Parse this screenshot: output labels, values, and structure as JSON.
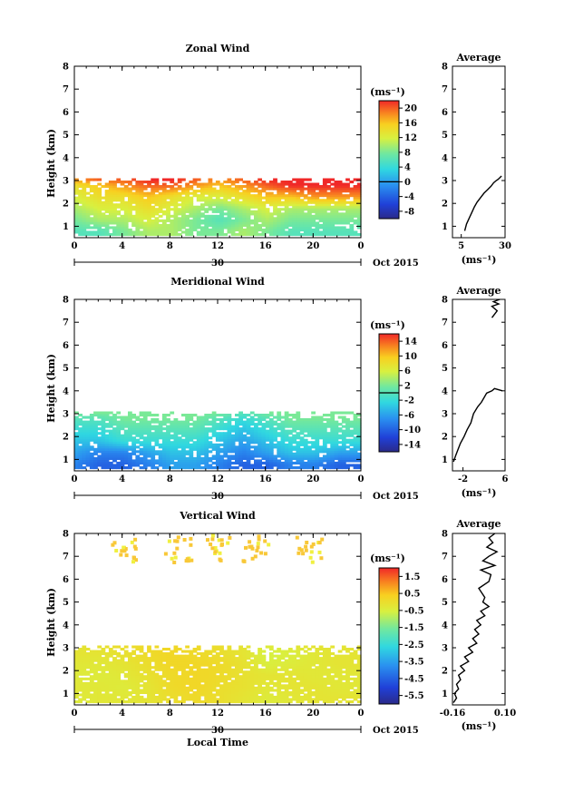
{
  "chart_data": [
    {
      "type": "heatmap",
      "title": "Zonal Wind",
      "xlabel": "",
      "ylabel": "Height (km)",
      "x_ticks": [
        "0",
        "4",
        "8",
        "12",
        "16",
        "20",
        "0"
      ],
      "y_ticks": [
        "1",
        "2",
        "3",
        "4",
        "5",
        "6",
        "7",
        "8"
      ],
      "xlim": [
        0,
        24
      ],
      "ylim": [
        0.5,
        8
      ],
      "date_day": "30",
      "date_suffix": "Oct 2015",
      "unit": "(ms⁻¹)",
      "colorbar_ticks": [
        "20",
        "16",
        "12",
        "8",
        "4",
        "0",
        "-4",
        "-8"
      ],
      "colorbar_values": [
        20,
        16,
        12,
        8,
        4,
        0,
        -4,
        -8
      ],
      "colorbar_range": [
        -10,
        22
      ],
      "colorbar_marker": 0,
      "field": {
        "t": [
          0,
          2,
          4,
          6,
          8,
          10,
          12,
          14,
          16,
          18,
          20,
          22,
          24
        ],
        "h": [
          0.75,
          1.25,
          1.75,
          2.25,
          2.75,
          3.0
        ],
        "rows": [
          [
            6,
            6,
            8,
            10,
            10,
            8,
            8,
            10,
            8,
            6,
            6,
            6,
            6
          ],
          [
            8,
            10,
            10,
            12,
            10,
            8,
            6,
            8,
            10,
            8,
            8,
            8,
            8
          ],
          [
            10,
            12,
            12,
            14,
            12,
            10,
            8,
            10,
            12,
            10,
            10,
            10,
            10
          ],
          [
            12,
            14,
            14,
            16,
            14,
            12,
            12,
            14,
            16,
            16,
            18,
            18,
            18
          ],
          [
            14,
            16,
            18,
            20,
            20,
            18,
            16,
            18,
            20,
            22,
            22,
            22,
            22
          ],
          [
            18,
            20,
            20,
            22,
            22,
            20,
            18,
            20,
            22,
            22,
            22,
            22,
            22
          ]
        ]
      },
      "profile": {
        "title": "Average",
        "xlabel": "(ms⁻¹)",
        "x_ticks": [
          "5",
          "30"
        ],
        "x_tick_values": [
          5,
          30
        ],
        "xlim": [
          0,
          30
        ],
        "ylim": [
          0.5,
          8
        ],
        "y_ticks": [
          "1",
          "2",
          "3",
          "4",
          "5",
          "6",
          "7",
          "8"
        ],
        "x": [
          7,
          8,
          9.5,
          11,
          12.5,
          14,
          16,
          18,
          20,
          22,
          23.5,
          25,
          26,
          28
        ],
        "y": [
          0.8,
          1.1,
          1.35,
          1.6,
          1.85,
          2.05,
          2.25,
          2.45,
          2.6,
          2.75,
          2.9,
          3.0,
          3.05,
          3.2
        ]
      }
    },
    {
      "type": "heatmap",
      "title": "Meridional Wind",
      "xlabel": "",
      "ylabel": "Height (km)",
      "x_ticks": [
        "0",
        "4",
        "8",
        "12",
        "16",
        "20",
        "0"
      ],
      "y_ticks": [
        "1",
        "2",
        "3",
        "4",
        "5",
        "6",
        "7",
        "8"
      ],
      "xlim": [
        0,
        24
      ],
      "ylim": [
        0.5,
        8
      ],
      "date_day": "30",
      "date_suffix": "Oct 2015",
      "unit": "(ms⁻¹)",
      "colorbar_ticks": [
        "14",
        "10",
        "6",
        "2",
        "-2",
        "-6",
        "-10",
        "-14"
      ],
      "colorbar_values": [
        14,
        10,
        6,
        2,
        -2,
        -6,
        -10,
        -14
      ],
      "colorbar_range": [
        -16,
        16
      ],
      "colorbar_marker": 0,
      "field": {
        "t": [
          0,
          2,
          4,
          6,
          8,
          10,
          12,
          14,
          16,
          18,
          20,
          22,
          24
        ],
        "h": [
          0.75,
          1.25,
          1.75,
          2.25,
          2.75,
          3.0
        ],
        "rows": [
          [
            -8,
            -10,
            -10,
            -8,
            -6,
            -6,
            -8,
            -10,
            -10,
            -8,
            -8,
            -10,
            -10
          ],
          [
            -6,
            -8,
            -8,
            -6,
            -4,
            -4,
            -6,
            -8,
            -6,
            -4,
            -4,
            -6,
            -6
          ],
          [
            -4,
            -4,
            -2,
            -2,
            -2,
            -2,
            -4,
            -6,
            -4,
            -2,
            -2,
            -2,
            -2
          ],
          [
            -2,
            -2,
            0,
            0,
            0,
            0,
            -2,
            -4,
            -2,
            0,
            0,
            0,
            0
          ],
          [
            0,
            0,
            2,
            2,
            2,
            2,
            0,
            -2,
            0,
            2,
            2,
            2,
            2
          ],
          [
            2,
            2,
            2,
            2,
            2,
            2,
            2,
            0,
            2,
            2,
            2,
            2,
            2
          ]
        ]
      },
      "profile": {
        "title": "Average",
        "xlabel": "(ms⁻¹)",
        "x_ticks": [
          "-2",
          "6"
        ],
        "x_tick_values": [
          -2,
          6
        ],
        "xlim": [
          -4,
          6
        ],
        "ylim": [
          0.5,
          8
        ],
        "y_ticks": [
          "1",
          "2",
          "3",
          "4",
          "5",
          "6",
          "7",
          "8"
        ],
        "x": [
          -3.8,
          -3.5,
          -3.0,
          -2.5,
          -1.8,
          -1.2,
          -0.5,
          0.0,
          0.8,
          1.5,
          2.0,
          2.5,
          3.5,
          4.0,
          5.5,
          3.5,
          4.5,
          3.5,
          4.8,
          3.8,
          5.0
        ],
        "y": [
          0.9,
          1.1,
          1.4,
          1.7,
          2.0,
          2.3,
          2.6,
          3.0,
          3.3,
          3.5,
          3.7,
          3.9,
          4.0,
          4.1,
          4.0,
          7.2,
          7.5,
          7.7,
          7.8,
          7.9,
          8.0
        ]
      }
    },
    {
      "type": "heatmap",
      "title": "Vertical Wind",
      "xlabel": "Local Time",
      "ylabel": "Height (km)",
      "x_ticks": [
        "0",
        "4",
        "8",
        "12",
        "16",
        "20",
        "0"
      ],
      "y_ticks": [
        "1",
        "2",
        "3",
        "4",
        "5",
        "6",
        "7",
        "8"
      ],
      "xlim": [
        0,
        24
      ],
      "ylim": [
        0.5,
        8
      ],
      "date_day": "30",
      "date_suffix": "Oct 2015",
      "unit": "(ms⁻¹)",
      "colorbar_ticks": [
        "1.5",
        "0.5",
        "-0.5",
        "-1.5",
        "-2.5",
        "-3.5",
        "-4.5",
        "-5.5"
      ],
      "colorbar_values": [
        1.5,
        0.5,
        -0.5,
        -1.5,
        -2.5,
        -3.5,
        -4.5,
        -5.5
      ],
      "colorbar_range": [
        -6,
        2
      ],
      "colorbar_marker": null,
      "field": {
        "t": [
          0,
          2,
          4,
          6,
          8,
          10,
          12,
          14,
          16,
          18,
          20,
          22,
          24
        ],
        "h": [
          0.75,
          1.25,
          1.75,
          2.25,
          2.75,
          3.0
        ],
        "rows": [
          [
            -0.4,
            -0.3,
            -0.3,
            -0.2,
            0.0,
            0.1,
            0.0,
            -0.2,
            -0.4,
            -0.3,
            -0.2,
            -0.2,
            -0.2
          ],
          [
            -0.3,
            -0.3,
            -0.4,
            -0.2,
            0.1,
            0.2,
            0.0,
            -0.1,
            -0.3,
            -0.2,
            -0.2,
            -0.3,
            -0.3
          ],
          [
            -0.4,
            -0.4,
            -0.3,
            -0.1,
            0.1,
            0.2,
            0.1,
            -0.1,
            -0.2,
            -0.2,
            -0.3,
            -0.3,
            -0.3
          ],
          [
            -0.3,
            -0.3,
            -0.2,
            0.0,
            0.2,
            0.2,
            0.1,
            -0.1,
            -0.5,
            -0.4,
            -0.3,
            -0.2,
            -0.2
          ],
          [
            -0.2,
            -0.2,
            -0.1,
            0.1,
            0.2,
            0.1,
            0.0,
            -0.2,
            -0.6,
            -0.5,
            -0.3,
            -0.2,
            -0.2
          ],
          [
            -0.2,
            -0.1,
            0.0,
            0.1,
            0.2,
            0.1,
            0.0,
            -0.2,
            -0.4,
            -0.3,
            -0.2,
            -0.2,
            -0.2
          ]
        ]
      },
      "profile": {
        "title": "Average",
        "xlabel": "(ms⁻¹)",
        "x_ticks": [
          "-0.16",
          "0.10"
        ],
        "x_tick_values": [
          -0.16,
          0.1
        ],
        "xlim": [
          -0.16,
          0.1
        ],
        "ylim": [
          0.5,
          8
        ],
        "y_ticks": [
          "1",
          "2",
          "3",
          "4",
          "5",
          "6",
          "7",
          "8"
        ],
        "x": [
          -0.155,
          -0.14,
          -0.15,
          -0.13,
          -0.14,
          -0.12,
          -0.13,
          -0.1,
          -0.12,
          -0.08,
          -0.1,
          -0.06,
          -0.08,
          -0.04,
          -0.06,
          -0.03,
          -0.05,
          -0.02,
          -0.04,
          0.0,
          -0.02,
          0.02,
          -0.01,
          0.0,
          -0.03,
          0.02,
          0.03,
          -0.02,
          0.05,
          -0.01,
          0.02,
          0.06,
          0.01,
          0.04,
          0.02,
          0.05
        ],
        "y": [
          0.6,
          0.8,
          1.0,
          1.2,
          1.4,
          1.6,
          1.8,
          2.0,
          2.2,
          2.4,
          2.6,
          2.8,
          3.0,
          3.2,
          3.4,
          3.6,
          3.8,
          4.0,
          4.2,
          4.4,
          4.6,
          4.8,
          5.0,
          5.2,
          5.6,
          5.9,
          6.2,
          6.4,
          6.6,
          6.8,
          7.0,
          7.2,
          7.4,
          7.6,
          7.8,
          8.0
        ]
      }
    }
  ]
}
